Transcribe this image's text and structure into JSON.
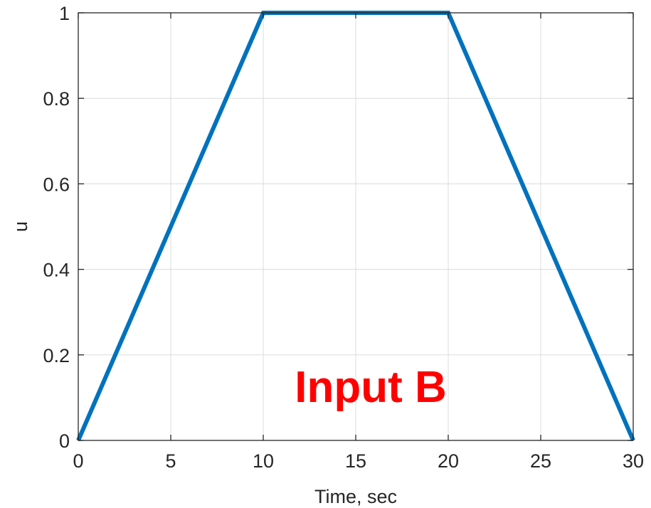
{
  "chart_data": {
    "type": "line",
    "title": "",
    "xlabel": "Time, sec",
    "ylabel": "u",
    "xlim": [
      0,
      30
    ],
    "ylim": [
      0,
      1
    ],
    "x_ticks": [
      0,
      5,
      10,
      15,
      20,
      25,
      30
    ],
    "x_tick_labels": [
      "0",
      "5",
      "10",
      "15",
      "20",
      "25",
      "30"
    ],
    "y_ticks": [
      0,
      0.2,
      0.4,
      0.6,
      0.8,
      1
    ],
    "y_tick_labels": [
      "0",
      "0.2",
      "0.4",
      "0.6",
      "0.8",
      "1"
    ],
    "grid": true,
    "series": [
      {
        "color": "#0072BD",
        "x": [
          0,
          10,
          20,
          30
        ],
        "y": [
          0,
          1,
          1,
          0
        ]
      }
    ],
    "annotation": {
      "text": "Input B",
      "color": "#FF0000"
    }
  }
}
